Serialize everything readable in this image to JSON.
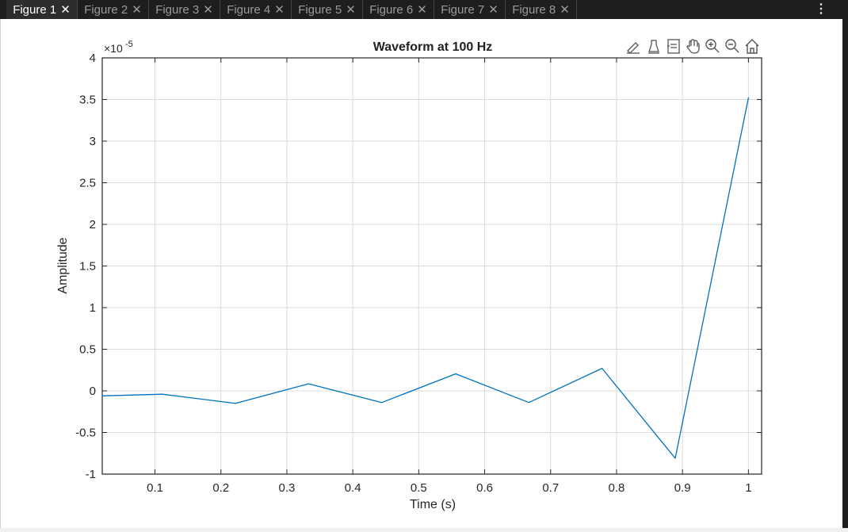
{
  "tabs": [
    {
      "label": "Figure 1",
      "active": true
    },
    {
      "label": "Figure 2",
      "active": false
    },
    {
      "label": "Figure 3",
      "active": false
    },
    {
      "label": "Figure 4",
      "active": false
    },
    {
      "label": "Figure 5",
      "active": false
    },
    {
      "label": "Figure 6",
      "active": false
    },
    {
      "label": "Figure 7",
      "active": false
    },
    {
      "label": "Figure 8",
      "active": false
    }
  ],
  "menu_icon": "vertical-ellipsis-icon",
  "toolbar": [
    {
      "icon": "brush-edit-icon"
    },
    {
      "icon": "data-tips-icon"
    },
    {
      "icon": "datatip-list-icon"
    },
    {
      "icon": "pan-hand-icon"
    },
    {
      "icon": "zoom-in-icon"
    },
    {
      "icon": "zoom-out-icon"
    },
    {
      "icon": "home-icon"
    }
  ],
  "chart_data": {
    "type": "line",
    "title": "Waveform at 100 Hz",
    "xlabel": "Time (s)",
    "ylabel": "Amplitude",
    "exponent_label": "×10",
    "exponent_power": "-5",
    "xlim": [
      0.02,
      1.02
    ],
    "ylim": [
      -1,
      4
    ],
    "xticks": [
      0.1,
      0.2,
      0.3,
      0.4,
      0.5,
      0.6,
      0.7,
      0.8,
      0.9,
      1
    ],
    "xtick_labels": [
      "0.1",
      "0.2",
      "0.3",
      "0.4",
      "0.5",
      "0.6",
      "0.7",
      "0.8",
      "0.9",
      "1"
    ],
    "yticks": [
      -1,
      -0.5,
      0,
      0.5,
      1,
      1.5,
      2,
      2.5,
      3,
      3.5,
      4
    ],
    "ytick_labels": [
      "-1",
      "-0.5",
      "0",
      "0.5",
      "1",
      "1.5",
      "2",
      "2.5",
      "3",
      "3.5",
      "4"
    ],
    "grid": true,
    "series": [
      {
        "color": "#0072bd",
        "x": [
          0.0,
          0.111,
          0.222,
          0.333,
          0.444,
          0.556,
          0.667,
          0.778,
          0.889,
          1.0
        ],
        "y": [
          -0.06,
          -0.04,
          -0.15,
          0.085,
          -0.14,
          0.205,
          -0.14,
          0.27,
          -0.81,
          3.52
        ]
      }
    ]
  }
}
